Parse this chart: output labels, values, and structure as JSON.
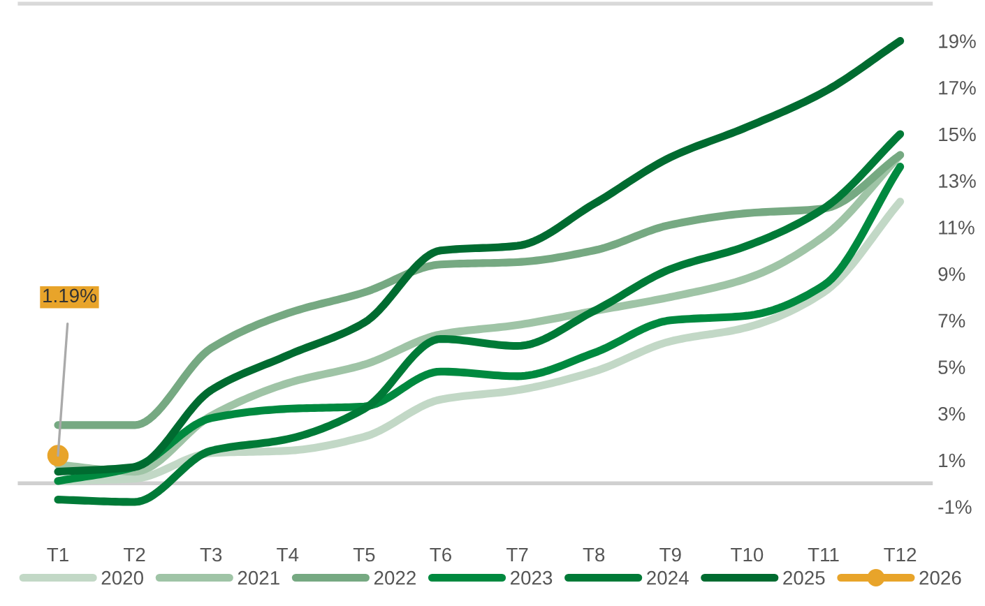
{
  "chart_data": {
    "type": "line",
    "categories": [
      "T1",
      "T2",
      "T3",
      "T4",
      "T5",
      "T6",
      "T7",
      "T8",
      "T9",
      "T10",
      "T11",
      "T12"
    ],
    "series": [
      {
        "name": "2020",
        "color": "#c2d8c6",
        "values": [
          0.1,
          0.2,
          1.3,
          1.4,
          2.0,
          3.6,
          4.0,
          4.8,
          6.1,
          6.7,
          8.2,
          12.1
        ]
      },
      {
        "name": "2021",
        "color": "#9fc4a6",
        "values": [
          0.8,
          0.5,
          2.9,
          4.3,
          5.1,
          6.4,
          6.8,
          7.4,
          8.0,
          8.8,
          10.6,
          14.1
        ]
      },
      {
        "name": "2022",
        "color": "#76a982",
        "values": [
          2.5,
          2.5,
          5.8,
          7.3,
          8.2,
          9.4,
          9.5,
          10.0,
          11.1,
          11.6,
          11.8,
          14.1
        ]
      },
      {
        "name": "2023",
        "color": "#00893f",
        "values": [
          0.1,
          0.7,
          2.8,
          3.2,
          3.3,
          4.8,
          4.6,
          5.6,
          7.0,
          7.2,
          8.5,
          13.6
        ]
      },
      {
        "name": "2024",
        "color": "#007a37",
        "values": [
          -0.7,
          -0.8,
          1.4,
          1.9,
          3.2,
          6.2,
          5.9,
          7.4,
          9.2,
          10.2,
          11.8,
          15.0
        ]
      },
      {
        "name": "2025",
        "color": "#006b30",
        "values": [
          0.5,
          0.7,
          4.0,
          5.5,
          6.9,
          10.0,
          10.2,
          12.0,
          14.0,
          15.3,
          16.8,
          19.0
        ]
      },
      {
        "name": "2026",
        "color": "#e8a42a",
        "marker": "circle",
        "values": [
          1.19,
          null,
          null,
          null,
          null,
          null,
          null,
          null,
          null,
          null,
          null,
          null
        ],
        "value_labels": [
          "1.19%",
          null,
          null,
          null,
          null,
          null,
          null,
          null,
          null,
          null,
          null,
          null
        ]
      }
    ],
    "ylim": [
      -1,
      20.6
    ],
    "yticks": [
      {
        "value": -1,
        "label": "-1%"
      },
      {
        "value": 1,
        "label": "1%"
      },
      {
        "value": 3,
        "label": "3%"
      },
      {
        "value": 5,
        "label": "5%"
      },
      {
        "value": 7,
        "label": "7%"
      },
      {
        "value": 9,
        "label": "9%"
      },
      {
        "value": 11,
        "label": "11%"
      },
      {
        "value": 13,
        "label": "13%"
      },
      {
        "value": 15,
        "label": "15%"
      },
      {
        "value": 17,
        "label": "17%"
      },
      {
        "value": 19,
        "label": "19%"
      }
    ],
    "grid": false,
    "legend": "bottom"
  }
}
